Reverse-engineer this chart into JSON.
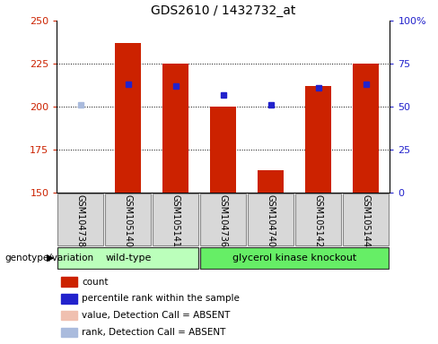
{
  "title": "GDS2610 / 1432732_at",
  "samples": [
    "GSM104738",
    "GSM105140",
    "GSM105141",
    "GSM104736",
    "GSM104740",
    "GSM105142",
    "GSM105144"
  ],
  "bar_values": [
    150,
    237,
    225,
    200,
    163,
    212,
    225
  ],
  "bar_absent": [
    true,
    false,
    false,
    false,
    false,
    false,
    false
  ],
  "rank_values": [
    51,
    63,
    62,
    57,
    51,
    61,
    63
  ],
  "rank_absent": [
    true,
    false,
    false,
    false,
    false,
    false,
    false
  ],
  "ylim_left": [
    150,
    250
  ],
  "ylim_right": [
    0,
    100
  ],
  "yticks_left": [
    150,
    175,
    200,
    225,
    250
  ],
  "yticks_right": [
    0,
    25,
    50,
    75,
    100
  ],
  "ytick_labels_right": [
    "0",
    "25",
    "50",
    "75",
    "100%"
  ],
  "bar_color_normal": "#cc2200",
  "bar_color_absent": "#f0b8a8",
  "rank_color_normal": "#2222cc",
  "rank_color_absent": "#aabbdd",
  "group_spans": [
    {
      "label": "wild-type",
      "start": 0,
      "end": 2,
      "color": "#bbffbb"
    },
    {
      "label": "glycerol kinase knockout",
      "start": 3,
      "end": 6,
      "color": "#66ee66"
    }
  ],
  "genotype_label": "genotype/variation",
  "legend_items": [
    {
      "label": "count",
      "color": "#cc2200"
    },
    {
      "label": "percentile rank within the sample",
      "color": "#2222cc"
    },
    {
      "label": "value, Detection Call = ABSENT",
      "color": "#f0c0b0"
    },
    {
      "label": "rank, Detection Call = ABSENT",
      "color": "#aabbdd"
    }
  ]
}
